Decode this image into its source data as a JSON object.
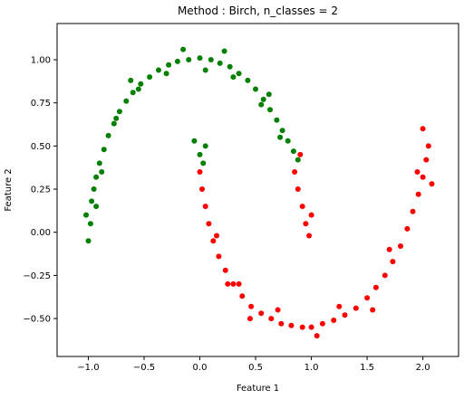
{
  "chart_data": {
    "type": "scatter",
    "title": "Method : Birch, n_classes = 2",
    "xlabel": "Feature 1",
    "ylabel": "Feature 2",
    "xlim": [
      -1.28,
      2.32
    ],
    "ylim": [
      -0.72,
      1.21
    ],
    "xticks": [
      -1.0,
      -0.5,
      0.0,
      0.5,
      1.0,
      1.5,
      2.0
    ],
    "xtick_labels": [
      "−1.0",
      "−0.5",
      "0.0",
      "0.5",
      "1.0",
      "1.5",
      "2.0"
    ],
    "yticks": [
      -0.5,
      -0.25,
      0.0,
      0.25,
      0.5,
      0.75,
      1.0
    ],
    "ytick_labels": [
      "−0.50",
      "−0.25",
      "0.00",
      "0.25",
      "0.50",
      "0.75",
      "1.00"
    ],
    "grid": false,
    "legend": "none",
    "series": [
      {
        "color": "#008000",
        "points": [
          [
            -1.0,
            -0.05
          ],
          [
            -0.98,
            0.05
          ],
          [
            -1.02,
            0.1
          ],
          [
            -0.97,
            0.18
          ],
          [
            -0.95,
            0.25
          ],
          [
            -0.93,
            0.32
          ],
          [
            -0.9,
            0.4
          ],
          [
            -0.86,
            0.48
          ],
          [
            -0.82,
            0.56
          ],
          [
            -0.77,
            0.63
          ],
          [
            -0.72,
            0.7
          ],
          [
            -0.66,
            0.76
          ],
          [
            -0.6,
            0.81
          ],
          [
            -0.53,
            0.86
          ],
          [
            -0.45,
            0.9
          ],
          [
            -0.37,
            0.94
          ],
          [
            -0.28,
            0.97
          ],
          [
            -0.2,
            0.99
          ],
          [
            -0.1,
            1.0
          ],
          [
            0.0,
            1.01
          ],
          [
            0.1,
            1.0
          ],
          [
            0.18,
            0.98
          ],
          [
            0.27,
            0.96
          ],
          [
            0.35,
            0.92
          ],
          [
            0.43,
            0.88
          ],
          [
            0.5,
            0.83
          ],
          [
            0.57,
            0.77
          ],
          [
            0.63,
            0.71
          ],
          [
            0.69,
            0.65
          ],
          [
            0.74,
            0.59
          ],
          [
            0.79,
            0.53
          ],
          [
            0.84,
            0.47
          ],
          [
            0.88,
            0.42
          ],
          [
            -0.05,
            0.53
          ],
          [
            0.0,
            0.45
          ],
          [
            0.05,
            0.5
          ],
          [
            0.03,
            0.4
          ],
          [
            -0.93,
            0.15
          ],
          [
            -0.88,
            0.35
          ],
          [
            -0.75,
            0.66
          ],
          [
            -0.55,
            0.83
          ],
          [
            -0.3,
            0.92
          ],
          [
            0.05,
            0.94
          ],
          [
            0.3,
            0.9
          ],
          [
            0.55,
            0.74
          ],
          [
            0.72,
            0.55
          ],
          [
            -0.62,
            0.88
          ],
          [
            0.22,
            1.05
          ],
          [
            -0.15,
            1.06
          ],
          [
            0.62,
            0.8
          ]
        ]
      },
      {
        "color": "#ff0000",
        "points": [
          [
            0.0,
            0.35
          ],
          [
            0.02,
            0.25
          ],
          [
            0.05,
            0.15
          ],
          [
            0.08,
            0.05
          ],
          [
            0.12,
            -0.05
          ],
          [
            0.17,
            -0.14
          ],
          [
            0.23,
            -0.22
          ],
          [
            0.3,
            -0.3
          ],
          [
            0.38,
            -0.37
          ],
          [
            0.46,
            -0.43
          ],
          [
            0.55,
            -0.47
          ],
          [
            0.64,
            -0.5
          ],
          [
            0.73,
            -0.53
          ],
          [
            0.82,
            -0.54
          ],
          [
            0.92,
            -0.55
          ],
          [
            1.0,
            -0.55
          ],
          [
            1.1,
            -0.53
          ],
          [
            1.2,
            -0.51
          ],
          [
            1.3,
            -0.48
          ],
          [
            1.4,
            -0.44
          ],
          [
            1.5,
            -0.38
          ],
          [
            1.58,
            -0.32
          ],
          [
            1.66,
            -0.25
          ],
          [
            1.73,
            -0.17
          ],
          [
            1.8,
            -0.08
          ],
          [
            1.86,
            0.02
          ],
          [
            1.91,
            0.12
          ],
          [
            1.96,
            0.22
          ],
          [
            2.0,
            0.32
          ],
          [
            2.03,
            0.42
          ],
          [
            2.05,
            0.5
          ],
          [
            2.0,
            0.6
          ],
          [
            0.85,
            0.35
          ],
          [
            0.88,
            0.25
          ],
          [
            0.92,
            0.15
          ],
          [
            0.95,
            0.05
          ],
          [
            0.98,
            -0.02
          ],
          [
            0.9,
            0.45
          ],
          [
            1.0,
            0.1
          ],
          [
            0.15,
            -0.02
          ],
          [
            0.35,
            -0.3
          ],
          [
            0.7,
            -0.45
          ],
          [
            1.25,
            -0.43
          ],
          [
            1.7,
            -0.1
          ],
          [
            1.95,
            0.35
          ],
          [
            0.45,
            -0.5
          ],
          [
            1.05,
            -0.6
          ],
          [
            1.55,
            -0.45
          ],
          [
            2.08,
            0.28
          ],
          [
            0.25,
            -0.3
          ]
        ]
      }
    ]
  }
}
